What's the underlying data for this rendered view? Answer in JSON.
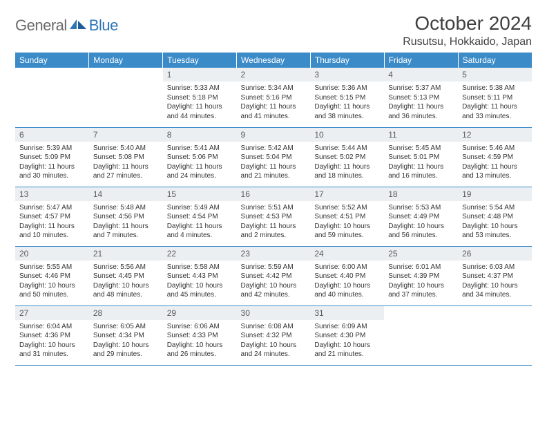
{
  "brand": {
    "part1": "General",
    "part2": "Blue"
  },
  "title": "October 2024",
  "location": "Rusutsu, Hokkaido, Japan",
  "colors": {
    "header_bg": "#3b8bc9",
    "header_text": "#ffffff",
    "daynum_bg": "#eceff1",
    "daynum_text": "#5a5a5a",
    "body_text": "#333333",
    "border": "#3b8bc9",
    "logo_gray": "#6a6a6a",
    "logo_blue": "#2e75b6"
  },
  "weekdays": [
    "Sunday",
    "Monday",
    "Tuesday",
    "Wednesday",
    "Thursday",
    "Friday",
    "Saturday"
  ],
  "weeks": [
    [
      null,
      null,
      {
        "n": "1",
        "sr": "Sunrise: 5:33 AM",
        "ss": "Sunset: 5:18 PM",
        "dl": "Daylight: 11 hours and 44 minutes."
      },
      {
        "n": "2",
        "sr": "Sunrise: 5:34 AM",
        "ss": "Sunset: 5:16 PM",
        "dl": "Daylight: 11 hours and 41 minutes."
      },
      {
        "n": "3",
        "sr": "Sunrise: 5:36 AM",
        "ss": "Sunset: 5:15 PM",
        "dl": "Daylight: 11 hours and 38 minutes."
      },
      {
        "n": "4",
        "sr": "Sunrise: 5:37 AM",
        "ss": "Sunset: 5:13 PM",
        "dl": "Daylight: 11 hours and 36 minutes."
      },
      {
        "n": "5",
        "sr": "Sunrise: 5:38 AM",
        "ss": "Sunset: 5:11 PM",
        "dl": "Daylight: 11 hours and 33 minutes."
      }
    ],
    [
      {
        "n": "6",
        "sr": "Sunrise: 5:39 AM",
        "ss": "Sunset: 5:09 PM",
        "dl": "Daylight: 11 hours and 30 minutes."
      },
      {
        "n": "7",
        "sr": "Sunrise: 5:40 AM",
        "ss": "Sunset: 5:08 PM",
        "dl": "Daylight: 11 hours and 27 minutes."
      },
      {
        "n": "8",
        "sr": "Sunrise: 5:41 AM",
        "ss": "Sunset: 5:06 PM",
        "dl": "Daylight: 11 hours and 24 minutes."
      },
      {
        "n": "9",
        "sr": "Sunrise: 5:42 AM",
        "ss": "Sunset: 5:04 PM",
        "dl": "Daylight: 11 hours and 21 minutes."
      },
      {
        "n": "10",
        "sr": "Sunrise: 5:44 AM",
        "ss": "Sunset: 5:02 PM",
        "dl": "Daylight: 11 hours and 18 minutes."
      },
      {
        "n": "11",
        "sr": "Sunrise: 5:45 AM",
        "ss": "Sunset: 5:01 PM",
        "dl": "Daylight: 11 hours and 16 minutes."
      },
      {
        "n": "12",
        "sr": "Sunrise: 5:46 AM",
        "ss": "Sunset: 4:59 PM",
        "dl": "Daylight: 11 hours and 13 minutes."
      }
    ],
    [
      {
        "n": "13",
        "sr": "Sunrise: 5:47 AM",
        "ss": "Sunset: 4:57 PM",
        "dl": "Daylight: 11 hours and 10 minutes."
      },
      {
        "n": "14",
        "sr": "Sunrise: 5:48 AM",
        "ss": "Sunset: 4:56 PM",
        "dl": "Daylight: 11 hours and 7 minutes."
      },
      {
        "n": "15",
        "sr": "Sunrise: 5:49 AM",
        "ss": "Sunset: 4:54 PM",
        "dl": "Daylight: 11 hours and 4 minutes."
      },
      {
        "n": "16",
        "sr": "Sunrise: 5:51 AM",
        "ss": "Sunset: 4:53 PM",
        "dl": "Daylight: 11 hours and 2 minutes."
      },
      {
        "n": "17",
        "sr": "Sunrise: 5:52 AM",
        "ss": "Sunset: 4:51 PM",
        "dl": "Daylight: 10 hours and 59 minutes."
      },
      {
        "n": "18",
        "sr": "Sunrise: 5:53 AM",
        "ss": "Sunset: 4:49 PM",
        "dl": "Daylight: 10 hours and 56 minutes."
      },
      {
        "n": "19",
        "sr": "Sunrise: 5:54 AM",
        "ss": "Sunset: 4:48 PM",
        "dl": "Daylight: 10 hours and 53 minutes."
      }
    ],
    [
      {
        "n": "20",
        "sr": "Sunrise: 5:55 AM",
        "ss": "Sunset: 4:46 PM",
        "dl": "Daylight: 10 hours and 50 minutes."
      },
      {
        "n": "21",
        "sr": "Sunrise: 5:56 AM",
        "ss": "Sunset: 4:45 PM",
        "dl": "Daylight: 10 hours and 48 minutes."
      },
      {
        "n": "22",
        "sr": "Sunrise: 5:58 AM",
        "ss": "Sunset: 4:43 PM",
        "dl": "Daylight: 10 hours and 45 minutes."
      },
      {
        "n": "23",
        "sr": "Sunrise: 5:59 AM",
        "ss": "Sunset: 4:42 PM",
        "dl": "Daylight: 10 hours and 42 minutes."
      },
      {
        "n": "24",
        "sr": "Sunrise: 6:00 AM",
        "ss": "Sunset: 4:40 PM",
        "dl": "Daylight: 10 hours and 40 minutes."
      },
      {
        "n": "25",
        "sr": "Sunrise: 6:01 AM",
        "ss": "Sunset: 4:39 PM",
        "dl": "Daylight: 10 hours and 37 minutes."
      },
      {
        "n": "26",
        "sr": "Sunrise: 6:03 AM",
        "ss": "Sunset: 4:37 PM",
        "dl": "Daylight: 10 hours and 34 minutes."
      }
    ],
    [
      {
        "n": "27",
        "sr": "Sunrise: 6:04 AM",
        "ss": "Sunset: 4:36 PM",
        "dl": "Daylight: 10 hours and 31 minutes."
      },
      {
        "n": "28",
        "sr": "Sunrise: 6:05 AM",
        "ss": "Sunset: 4:34 PM",
        "dl": "Daylight: 10 hours and 29 minutes."
      },
      {
        "n": "29",
        "sr": "Sunrise: 6:06 AM",
        "ss": "Sunset: 4:33 PM",
        "dl": "Daylight: 10 hours and 26 minutes."
      },
      {
        "n": "30",
        "sr": "Sunrise: 6:08 AM",
        "ss": "Sunset: 4:32 PM",
        "dl": "Daylight: 10 hours and 24 minutes."
      },
      {
        "n": "31",
        "sr": "Sunrise: 6:09 AM",
        "ss": "Sunset: 4:30 PM",
        "dl": "Daylight: 10 hours and 21 minutes."
      },
      null,
      null
    ]
  ]
}
